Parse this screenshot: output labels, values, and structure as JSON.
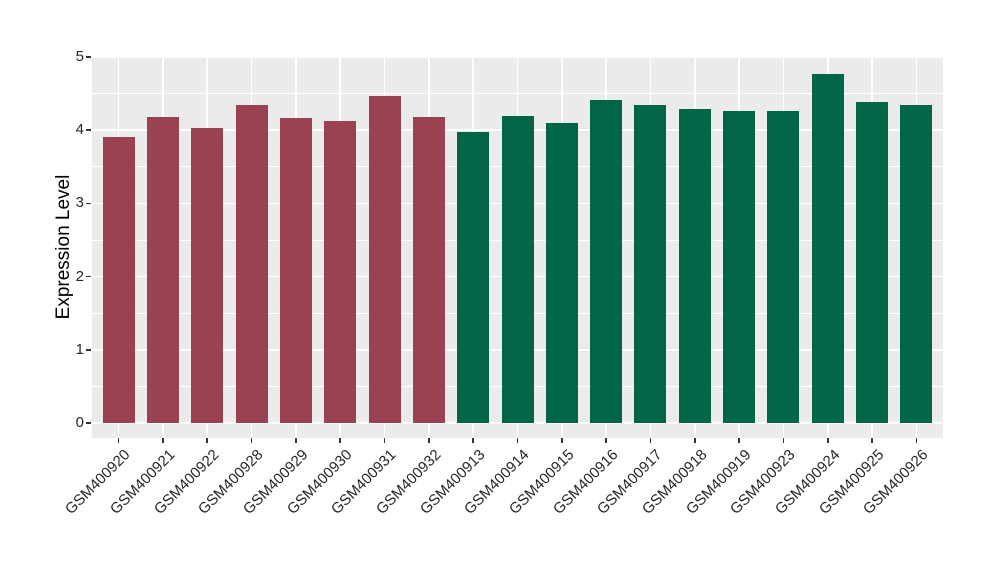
{
  "chart_data": {
    "type": "bar",
    "title": "",
    "xlabel": "",
    "ylabel": "Expression Level",
    "ylim": [
      0,
      5
    ],
    "yticks": [
      0,
      1,
      2,
      3,
      4,
      5
    ],
    "legend": "none",
    "grid": "white major+minor horizontal lines, white major vertical lines on gray panel",
    "categories": [
      "GSM400920",
      "GSM400921",
      "GSM400922",
      "GSM400928",
      "GSM400929",
      "GSM400930",
      "GSM400931",
      "GSM400932",
      "GSM400913",
      "GSM400914",
      "GSM400915",
      "GSM400916",
      "GSM400917",
      "GSM400918",
      "GSM400919",
      "GSM400923",
      "GSM400924",
      "GSM400925",
      "GSM400926"
    ],
    "values": [
      3.91,
      4.18,
      4.03,
      4.34,
      4.16,
      4.12,
      4.47,
      4.18,
      3.97,
      4.2,
      4.1,
      4.41,
      4.34,
      4.29,
      4.26,
      4.26,
      4.77,
      4.38,
      4.34
    ],
    "groups": [
      "group1",
      "group1",
      "group1",
      "group1",
      "group1",
      "group1",
      "group1",
      "group1",
      "group2",
      "group2",
      "group2",
      "group2",
      "group2",
      "group2",
      "group2",
      "group2",
      "group2",
      "group2",
      "group2"
    ],
    "colors": {
      "group1": "#9A4152",
      "group2": "#006647",
      "panel_bg": "#EBEBEB",
      "grid": "#FFFFFF",
      "tick_mark": "#333333",
      "tick_text": "#262626",
      "title_text": "#000000"
    }
  }
}
